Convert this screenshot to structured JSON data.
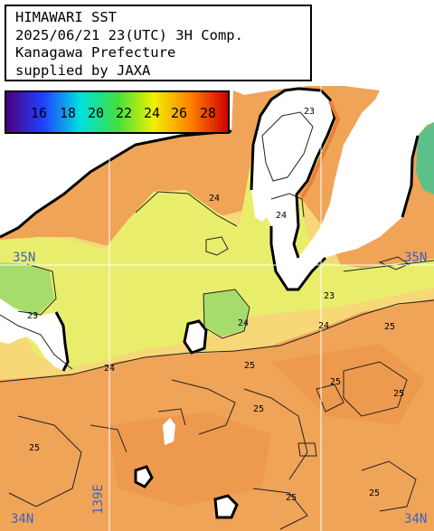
{
  "title_lines": [
    "HIMAWARI SST",
    "2025/06/21 23(UTC) 3H Comp.",
    "Kanagawa Prefecture",
    "supplied by JAXA"
  ],
  "legend": {
    "labels": [
      "16",
      "18",
      "20",
      "22",
      "24",
      "26",
      "28"
    ],
    "colors": [
      "#4b0082",
      "#2040ff",
      "#00e0e0",
      "#40e040",
      "#f0f000",
      "#ff8000",
      "#d00000"
    ]
  },
  "coordinate_labels": {
    "lat_35n_left": "35N",
    "lat_35n_right": "35N",
    "lat_34n_left": "34N",
    "lat_34n_right": "34N",
    "lon_139e": "139E"
  },
  "contour_labels": [
    "23",
    "24",
    "24",
    "23",
    "24",
    "25",
    "24",
    "24",
    "23",
    "25",
    "25",
    "25",
    "25",
    "25",
    "25",
    "25"
  ],
  "colors": {
    "land": "#ffffff",
    "warm_sea": "#f0a458",
    "mild_sea": "#f6dc7a",
    "cool_sea": "#e6f070",
    "cold_sea": "#9ad870",
    "coast": "#000000",
    "grid": "#ffffff"
  }
}
